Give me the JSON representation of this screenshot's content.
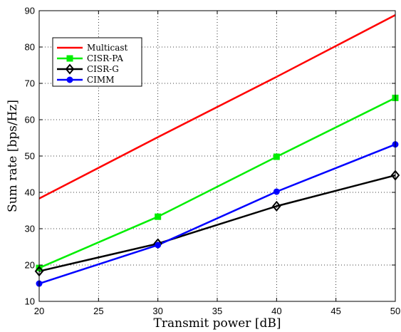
{
  "chart_data": {
    "type": "line",
    "title": "",
    "xlabel": "Transmit power [dB]",
    "ylabel": "Sum rate [bps/Hz]",
    "xlim": [
      20,
      50
    ],
    "ylim": [
      10,
      90
    ],
    "xticks": [
      20,
      25,
      30,
      35,
      40,
      45,
      50
    ],
    "yticks": [
      10,
      20,
      30,
      40,
      50,
      60,
      70,
      80,
      90
    ],
    "grid": true,
    "legend_position": "top-left",
    "series": [
      {
        "name": "Multicast",
        "color": "#ff0000",
        "marker": "none",
        "x": [
          20,
          30,
          40,
          50
        ],
        "y": [
          38.3,
          55.2,
          71.8,
          88.8
        ]
      },
      {
        "name": "CISR-PA",
        "color": "#00ee00",
        "marker": "square",
        "x": [
          20,
          30,
          40,
          50
        ],
        "y": [
          19.2,
          33.3,
          49.8,
          66.0
        ]
      },
      {
        "name": "CISR-G",
        "color": "#000000",
        "marker": "diamond",
        "x": [
          20,
          30,
          40,
          50
        ],
        "y": [
          18.3,
          25.9,
          36.2,
          44.7
        ]
      },
      {
        "name": "CIMM",
        "color": "#0000ff",
        "marker": "circle",
        "x": [
          20,
          30,
          40,
          50
        ],
        "y": [
          14.9,
          25.5,
          40.2,
          53.2
        ]
      }
    ]
  }
}
